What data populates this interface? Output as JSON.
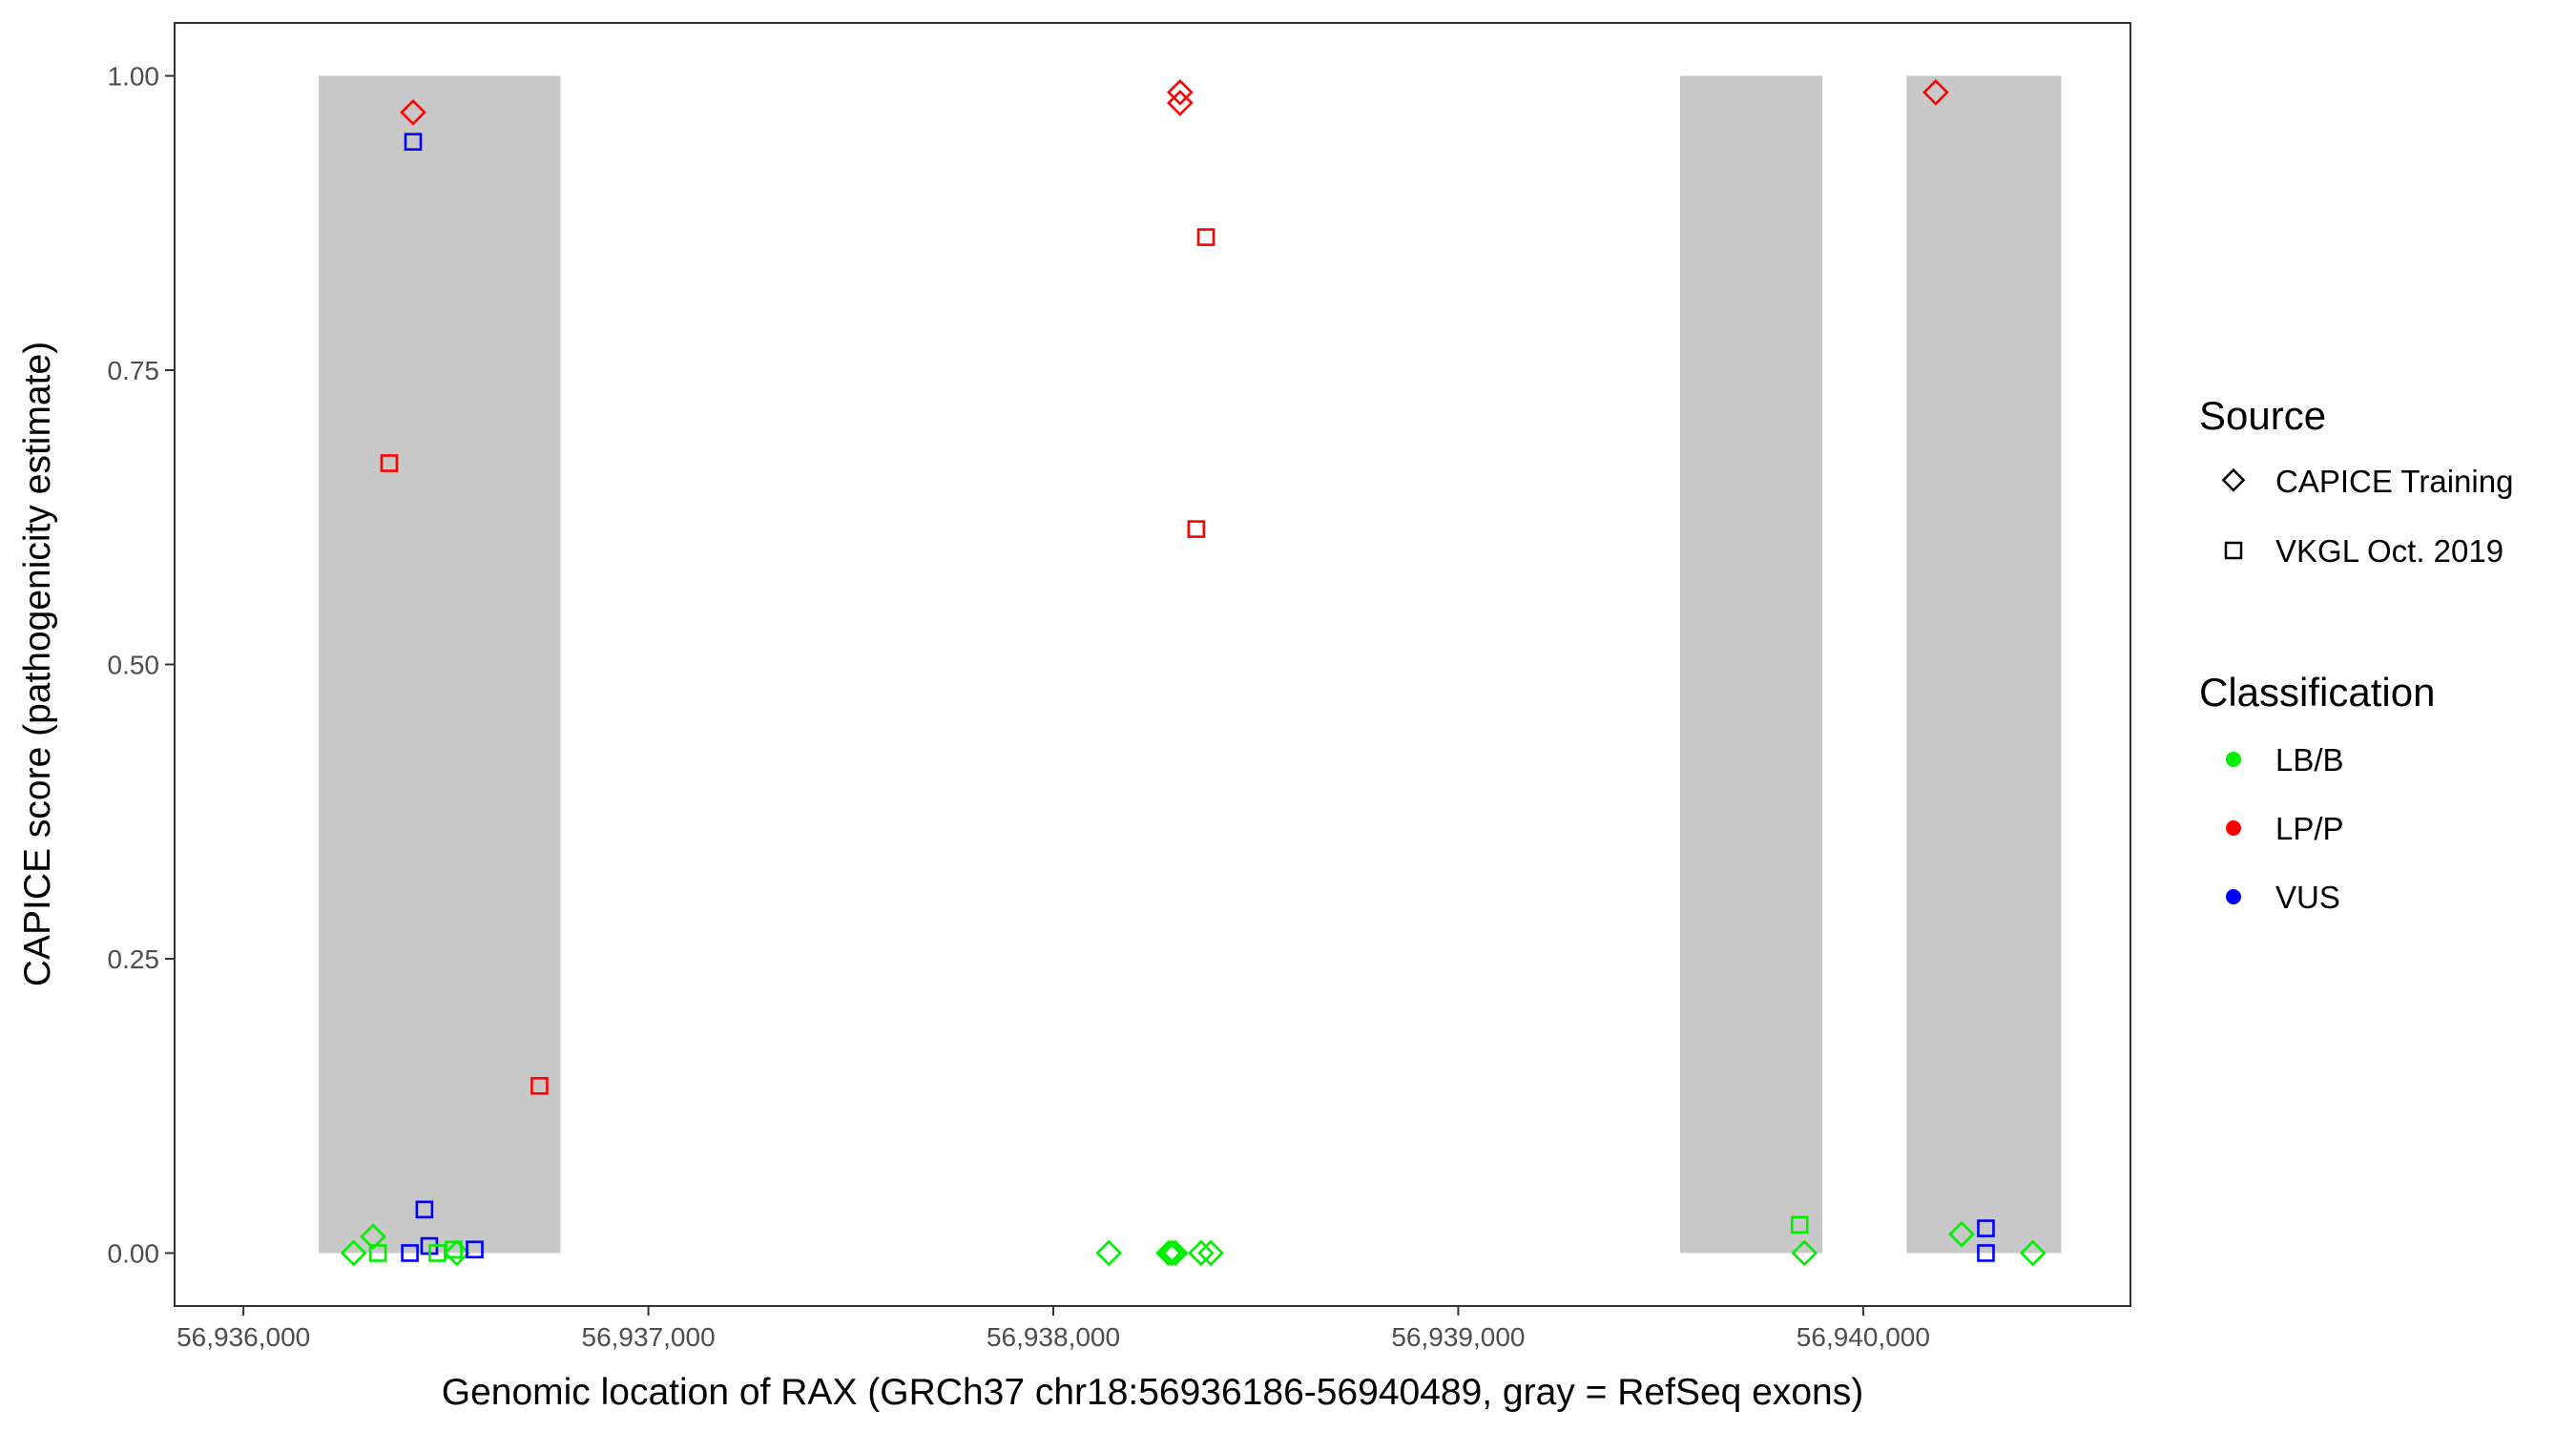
{
  "chart_data": {
    "type": "scatter",
    "xlabel": "Genomic location of RAX (GRCh37 chr18:56936186-56940489, gray = RefSeq exons)",
    "ylabel": "CAPICE score (pathogenicity estimate)",
    "xlim": [
      56935830,
      56940660
    ],
    "ylim": [
      -0.045,
      1.045
    ],
    "x_ticks": [
      56936000,
      56937000,
      56938000,
      56939000,
      56940000
    ],
    "x_tick_labels": [
      "56,936,000",
      "56,937,000",
      "56,938,000",
      "56,939,000",
      "56,940,000"
    ],
    "y_ticks": [
      0,
      0.25,
      0.5,
      0.75,
      1.0
    ],
    "y_tick_labels": [
      "0.00",
      "0.25",
      "0.50",
      "0.75",
      "1.00"
    ],
    "grid": false,
    "exon_color": "#c8c8c8",
    "exons": [
      {
        "start": 56936186,
        "end": 56936783,
        "ymin": 0,
        "ymax": 1
      },
      {
        "start": 56939548,
        "end": 56939899,
        "ymin": 0,
        "ymax": 1
      },
      {
        "start": 56940107,
        "end": 56940489,
        "ymin": 0,
        "ymax": 1
      }
    ],
    "legend_placement": "right",
    "legend": {
      "source_title": "Source",
      "sources": [
        {
          "label": "CAPICE Training",
          "shape": "diamond"
        },
        {
          "label": "VKGL Oct. 2019",
          "shape": "square"
        }
      ],
      "classification_title": "Classification",
      "classes": [
        {
          "label": "LB/B",
          "color": "#00ee00"
        },
        {
          "label": "LP/P",
          "color": "#ff0000"
        },
        {
          "label": "VUS",
          "color": "#0000ff"
        }
      ]
    },
    "points": [
      {
        "x": 56936419,
        "y": 0.969,
        "source": "CAPICE Training",
        "class": "LP/P"
      },
      {
        "x": 56936419,
        "y": 0.944,
        "source": "VKGL Oct. 2019",
        "class": "VUS"
      },
      {
        "x": 56936360,
        "y": 0.671,
        "source": "VKGL Oct. 2019",
        "class": "LP/P"
      },
      {
        "x": 56936731,
        "y": 0.142,
        "source": "VKGL Oct. 2019",
        "class": "LP/P"
      },
      {
        "x": 56936447,
        "y": 0.037,
        "source": "VKGL Oct. 2019",
        "class": "VUS"
      },
      {
        "x": 56936320,
        "y": 0.014,
        "source": "CAPICE Training",
        "class": "LB/B"
      },
      {
        "x": 56936272,
        "y": 0.0,
        "source": "CAPICE Training",
        "class": "LB/B"
      },
      {
        "x": 56936332,
        "y": 0.0,
        "source": "VKGL Oct. 2019",
        "class": "LB/B"
      },
      {
        "x": 56936411,
        "y": 0.0,
        "source": "VKGL Oct. 2019",
        "class": "VUS"
      },
      {
        "x": 56936459,
        "y": 0.006,
        "source": "VKGL Oct. 2019",
        "class": "VUS"
      },
      {
        "x": 56936479,
        "y": 0.0,
        "source": "VKGL Oct. 2019",
        "class": "LB/B"
      },
      {
        "x": 56936519,
        "y": 0.003,
        "source": "VKGL Oct. 2019",
        "class": "LB/B"
      },
      {
        "x": 56936527,
        "y": 0.0,
        "source": "CAPICE Training",
        "class": "LB/B"
      },
      {
        "x": 56936571,
        "y": 0.003,
        "source": "VKGL Oct. 2019",
        "class": "VUS"
      },
      {
        "x": 56938313,
        "y": 0.986,
        "source": "CAPICE Training",
        "class": "LP/P"
      },
      {
        "x": 56938313,
        "y": 0.977,
        "source": "CAPICE Training",
        "class": "LP/P"
      },
      {
        "x": 56938377,
        "y": 0.863,
        "source": "VKGL Oct. 2019",
        "class": "LP/P"
      },
      {
        "x": 56938353,
        "y": 0.615,
        "source": "VKGL Oct. 2019",
        "class": "LP/P"
      },
      {
        "x": 56938137,
        "y": 0.0,
        "source": "CAPICE Training",
        "class": "LB/B"
      },
      {
        "x": 56938285,
        "y": 0.0,
        "source": "CAPICE Training",
        "class": "LB/B"
      },
      {
        "x": 56938293,
        "y": 0.0,
        "source": "CAPICE Training",
        "class": "LB/B"
      },
      {
        "x": 56938301,
        "y": 0.0,
        "source": "CAPICE Training",
        "class": "LB/B"
      },
      {
        "x": 56938365,
        "y": 0.0,
        "source": "CAPICE Training",
        "class": "LB/B"
      },
      {
        "x": 56938389,
        "y": 0.0,
        "source": "CAPICE Training",
        "class": "LB/B"
      },
      {
        "x": 56939843,
        "y": 0.024,
        "source": "VKGL Oct. 2019",
        "class": "LB/B"
      },
      {
        "x": 56939855,
        "y": 0.0,
        "source": "CAPICE Training",
        "class": "LB/B"
      },
      {
        "x": 56940179,
        "y": 0.986,
        "source": "CAPICE Training",
        "class": "LP/P"
      },
      {
        "x": 56940243,
        "y": 0.016,
        "source": "CAPICE Training",
        "class": "LB/B"
      },
      {
        "x": 56940303,
        "y": 0.021,
        "source": "VKGL Oct. 2019",
        "class": "VUS"
      },
      {
        "x": 56940303,
        "y": 0.0,
        "source": "VKGL Oct. 2019",
        "class": "VUS"
      },
      {
        "x": 56940419,
        "y": 0.0,
        "source": "CAPICE Training",
        "class": "LB/B"
      }
    ]
  }
}
